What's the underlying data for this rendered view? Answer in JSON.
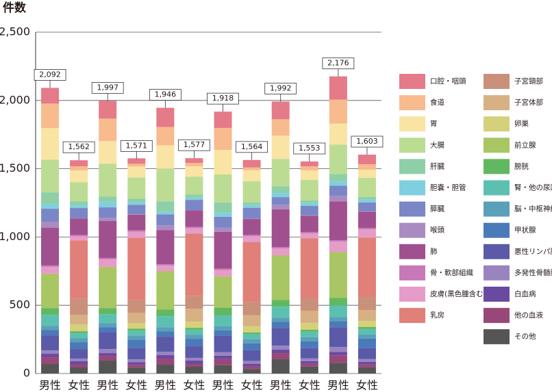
{
  "chart_data": {
    "type": "stacked-bar",
    "y_label": "件数",
    "categories": [
      "男性",
      "女性",
      "男性",
      "女性",
      "男性",
      "女性",
      "男性",
      "女性",
      "男性",
      "女性",
      "男性",
      "女性"
    ],
    "totals": [
      {
        "value": 2092,
        "label": "2,092"
      },
      {
        "value": 1562,
        "label": "1,562"
      },
      {
        "value": 1997,
        "label": "1,997"
      },
      {
        "value": 1571,
        "label": "1,571"
      },
      {
        "value": 1946,
        "label": "1,946"
      },
      {
        "value": 1577,
        "label": "1,577"
      },
      {
        "value": 1918,
        "label": "1,918"
      },
      {
        "value": 1564,
        "label": "1,564"
      },
      {
        "value": 1992,
        "label": "1,992"
      },
      {
        "value": 1553,
        "label": "1,553"
      },
      {
        "value": 2176,
        "label": "2,176"
      },
      {
        "value": 1603,
        "label": "1,603"
      }
    ],
    "ylim": [
      0,
      2500
    ],
    "yticks": [
      0,
      500,
      {
        "value": 1000,
        "label": "1,000"
      },
      {
        "value": 1500,
        "label": "1,500"
      },
      {
        "value": 2000,
        "label": "2,000"
      },
      {
        "value": 2500,
        "label": "2,500"
      }
    ],
    "grid": true,
    "series": [
      {
        "name": "口腔・咽頭",
        "color": "#e57a88",
        "values": [
          115,
          45,
          130,
          40,
          140,
          35,
          120,
          55,
          130,
          35,
          170,
          70
        ]
      },
      {
        "name": "食道",
        "color": "#f7bb8e",
        "values": [
          180,
          30,
          165,
          20,
          135,
          25,
          160,
          20,
          120,
          30,
          175,
          40
        ]
      },
      {
        "name": "胃",
        "color": "#f9e4a4",
        "values": [
          230,
          85,
          165,
          80,
          170,
          75,
          180,
          80,
          170,
          70,
          155,
          60
        ]
      },
      {
        "name": "大腸",
        "color": "#bcdc94",
        "values": [
          240,
          140,
          240,
          155,
          240,
          130,
          205,
          155,
          200,
          150,
          215,
          140
        ]
      },
      {
        "name": "肝臓",
        "color": "#8ecfa7",
        "values": [
          85,
          30,
          40,
          25,
          75,
          25,
          75,
          20,
          50,
          20,
          55,
          20
        ]
      },
      {
        "name": "胆嚢・胆管",
        "color": "#7fcfe0",
        "values": [
          35,
          20,
          40,
          20,
          20,
          15,
          30,
          20,
          30,
          20,
          30,
          20
        ]
      },
      {
        "name": "膵臓",
        "color": "#7a86c6",
        "values": [
          95,
          75,
          75,
          70,
          80,
          75,
          80,
          80,
          55,
          70,
          75,
          65
        ]
      },
      {
        "name": "喉頭",
        "color": "#a98bc2",
        "values": [
          45,
          2,
          25,
          2,
          35,
          2,
          30,
          2,
          35,
          2,
          40,
          2
        ]
      },
      {
        "name": "肺",
        "color": "#a0508e",
        "values": [
          275,
          120,
          270,
          115,
          250,
          120,
          270,
          115,
          275,
          120,
          285,
          120
        ]
      },
      {
        "name": "骨・軟部組織",
        "color": "#c878b8",
        "values": [
          10,
          10,
          10,
          10,
          10,
          10,
          10,
          10,
          10,
          10,
          10,
          10
        ]
      },
      {
        "name": "皮膚(黒色腫含む)",
        "color": "#e59cc8",
        "values": [
          50,
          30,
          55,
          45,
          40,
          40,
          45,
          45,
          50,
          35,
          75,
          60
        ]
      },
      {
        "name": "乳房",
        "color": "#e08078",
        "values": [
          2,
          425,
          2,
          455,
          2,
          455,
          2,
          440,
          2,
          440,
          2,
          435
        ]
      },
      {
        "name": "子宮頸部",
        "color": "#c9907a",
        "values": [
          0,
          120,
          0,
          95,
          0,
          95,
          0,
          95,
          0,
          90,
          0,
          95
        ]
      },
      {
        "name": "子宮体部",
        "color": "#d7b083",
        "values": [
          0,
          70,
          0,
          75,
          0,
          95,
          0,
          80,
          0,
          90,
          0,
          80
        ]
      },
      {
        "name": "卵巣",
        "color": "#d5d07a",
        "values": [
          0,
          50,
          0,
          40,
          0,
          45,
          0,
          45,
          0,
          50,
          0,
          45
        ]
      },
      {
        "name": "前立腺",
        "color": "#a8c664",
        "values": [
          250,
          0,
          300,
          0,
          279,
          0,
          230,
          0,
          325,
          0,
          335,
          0
        ]
      },
      {
        "name": "膀胱",
        "color": "#62b860",
        "values": [
          50,
          15,
          45,
          15,
          50,
          15,
          55,
          15,
          50,
          15,
          55,
          15
        ]
      },
      {
        "name": "腎・他の尿路",
        "color": "#5cc0b0",
        "values": [
          80,
          35,
          65,
          35,
          80,
          35,
          80,
          35,
          80,
          40,
          85,
          40
        ]
      },
      {
        "name": "脳・中枢神経系",
        "color": "#5aa0b8",
        "values": [
          30,
          30,
          30,
          30,
          30,
          30,
          30,
          30,
          30,
          30,
          30,
          30
        ]
      },
      {
        "name": "甲状腺",
        "color": "#4a7ab8",
        "values": [
          40,
          50,
          35,
          60,
          40,
          55,
          40,
          50,
          45,
          50,
          45,
          70
        ]
      },
      {
        "name": "悪性リンパ腫",
        "color": "#5a5aa8",
        "values": [
          110,
          70,
          125,
          85,
          110,
          85,
          120,
          80,
          130,
          75,
          145,
          80
        ]
      },
      {
        "name": "多発性骨髄腫",
        "color": "#9a84c0",
        "values": [
          25,
          20,
          30,
          20,
          25,
          20,
          25,
          20,
          30,
          20,
          35,
          20
        ]
      },
      {
        "name": "白血病",
        "color": "#6a4aa0",
        "values": [
          25,
          25,
          20,
          20,
          25,
          25,
          25,
          20,
          25,
          20,
          25,
          20
        ]
      },
      {
        "name": "他の血液",
        "color": "#984878",
        "values": [
          50,
          20,
          35,
          20,
          45,
          20,
          45,
          20,
          45,
          20,
          55,
          20
        ]
      },
      {
        "name": "その他",
        "color": "#555555",
        "values": [
          70,
          45,
          95,
          44,
          65,
          50,
          61,
          32,
          105,
          51,
          79,
          46
        ]
      }
    ]
  }
}
